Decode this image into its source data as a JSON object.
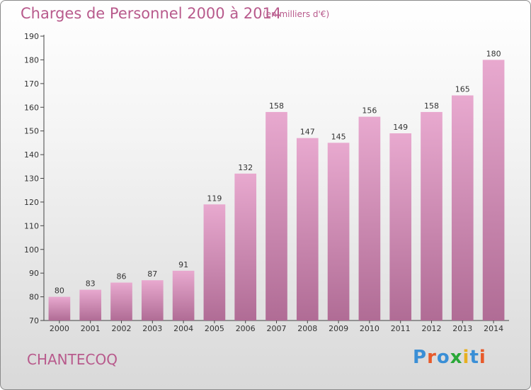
{
  "header": {
    "title": "Charges de Personnel 2000 à 2014",
    "subtitle": "(en milliers d'€)"
  },
  "footer": {
    "commune": "CHANTECOQ",
    "logo_text": "Proxiti"
  },
  "colors": {
    "bar_top": "#e8a9cf",
    "bar_bottom": "#b06c95",
    "title": "#b85a8c",
    "logo_letters": [
      "#3a8fd6",
      "#e85a2a",
      "#3a8fd6",
      "#2aa838",
      "#e8b020",
      "#3a8fd6",
      "#e85a2a"
    ]
  },
  "chart_data": {
    "type": "bar",
    "title": "Charges de Personnel 2000 à 2014",
    "subtitle": "(en milliers d'€)",
    "categories": [
      "2000",
      "2001",
      "2002",
      "2003",
      "2004",
      "2005",
      "2006",
      "2007",
      "2008",
      "2009",
      "2010",
      "2011",
      "2012",
      "2013",
      "2014"
    ],
    "values": [
      80,
      83,
      86,
      87,
      91,
      119,
      132,
      158,
      147,
      145,
      156,
      149,
      158,
      165,
      180
    ],
    "ylim": [
      70,
      190
    ],
    "yticks": [
      "70",
      "80",
      "90",
      "100",
      "110",
      "120",
      "130",
      "140",
      "150",
      "160",
      "170",
      "180",
      "190"
    ],
    "grid": false,
    "data_labels": true
  }
}
